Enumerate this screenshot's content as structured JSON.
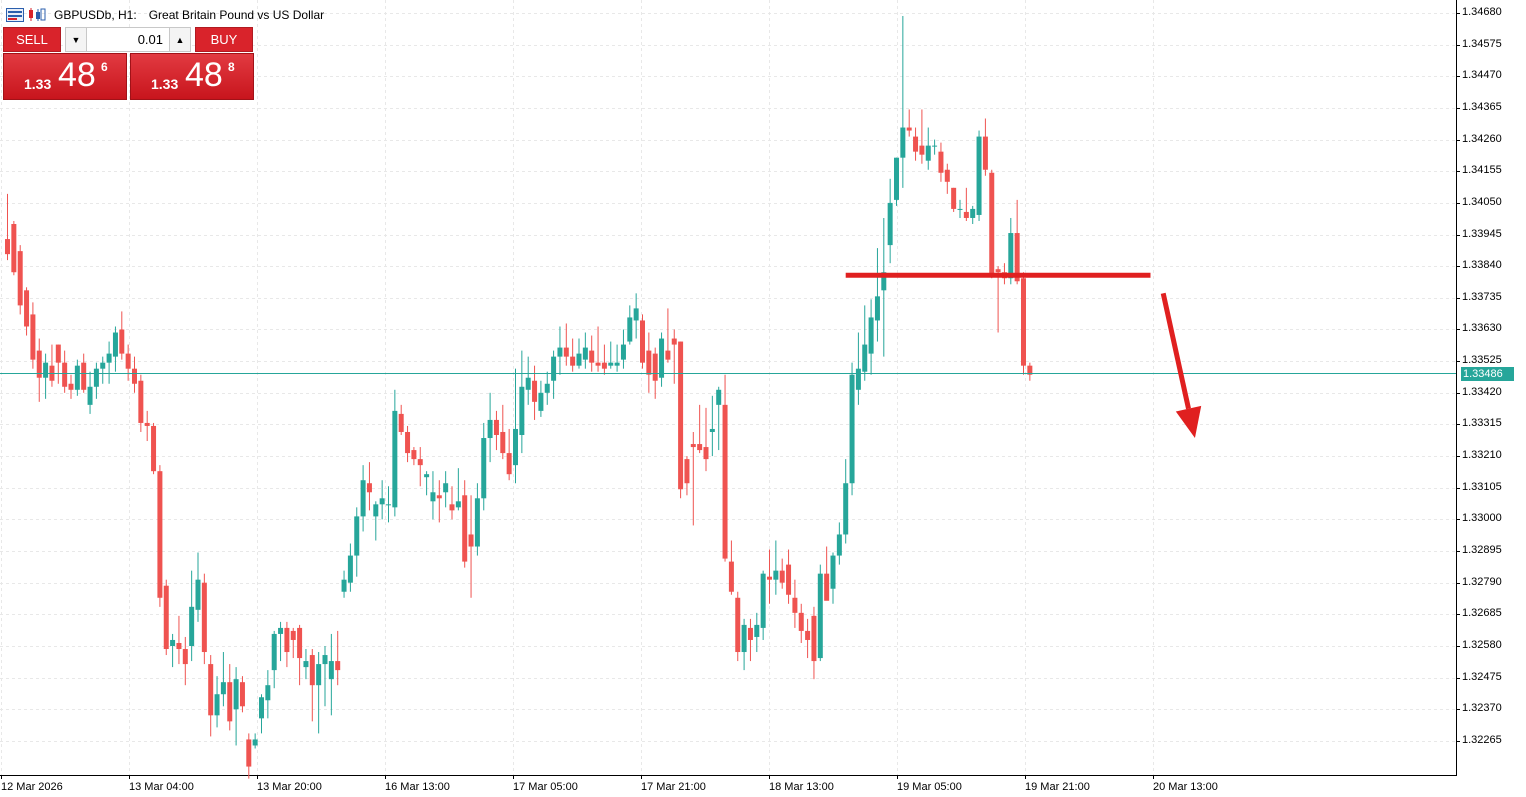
{
  "window": {
    "symbol_timeframe": "GBPUSDb, H1:",
    "description": "Great Britain Pound vs US Dollar"
  },
  "trade_panel": {
    "sell_label": "SELL",
    "buy_label": "BUY",
    "lot_value": "0.01",
    "sell_price": {
      "prefix": "1.33",
      "big": "48",
      "sup": "6"
    },
    "buy_price": {
      "prefix": "1.33",
      "big": "48",
      "sup": "8"
    },
    "button_color": "#d9232b"
  },
  "price_axis": {
    "ticks": [
      "1.34680",
      "1.34575",
      "1.34470",
      "1.34365",
      "1.34260",
      "1.34155",
      "1.34050",
      "1.33945",
      "1.33840",
      "1.33735",
      "1.33630",
      "1.33525",
      "1.33420",
      "1.33315",
      "1.33210",
      "1.33105",
      "1.33000",
      "1.32895",
      "1.32790",
      "1.32685",
      "1.32580",
      "1.32475",
      "1.32370",
      "1.32265"
    ],
    "current_bid_label": "1.33486"
  },
  "time_axis": {
    "labels": [
      "12 Mar 2026",
      "13 Mar 04:00",
      "13 Mar 20:00",
      "16 Mar 13:00",
      "17 Mar 05:00",
      "17 Mar 21:00",
      "18 Mar 13:00",
      "19 Mar 05:00",
      "19 Mar 21:00",
      "20 Mar 13:00"
    ]
  },
  "colors": {
    "bull": "#26a69a",
    "bear": "#ef5350",
    "grid": "#e8e8e8",
    "bid_line": "#26a69a",
    "annotation": "#e02020"
  },
  "chart_data": {
    "type": "candlestick",
    "symbol": "GBPUSDb",
    "timeframe": "H1",
    "ylim": [
      1.322,
      1.3471
    ],
    "candles": [
      [
        1.3393,
        1.3408,
        1.3386,
        1.3388
      ],
      [
        1.3398,
        1.3399,
        1.3381,
        1.3382
      ],
      [
        1.3389,
        1.3391,
        1.3368,
        1.3371
      ],
      [
        1.3376,
        1.3377,
        1.3361,
        1.3364
      ],
      [
        1.3368,
        1.3372,
        1.335,
        1.3353
      ],
      [
        1.3356,
        1.336,
        1.3339,
        1.3347
      ],
      [
        1.3347,
        1.3355,
        1.334,
        1.3352
      ],
      [
        1.3351,
        1.3358,
        1.3344,
        1.3346
      ],
      [
        1.3358,
        1.3358,
        1.3345,
        1.3352
      ],
      [
        1.3352,
        1.3356,
        1.3342,
        1.3344
      ],
      [
        1.3345,
        1.3348,
        1.334,
        1.3343
      ],
      [
        1.3343,
        1.3353,
        1.3341,
        1.3351
      ],
      [
        1.3352,
        1.3355,
        1.3342,
        1.3343
      ],
      [
        1.3338,
        1.3349,
        1.3335,
        1.3344
      ],
      [
        1.3344,
        1.3352,
        1.334,
        1.335
      ],
      [
        1.335,
        1.3354,
        1.3345,
        1.3352
      ],
      [
        1.3352,
        1.3359,
        1.3345,
        1.3355
      ],
      [
        1.3354,
        1.3364,
        1.3349,
        1.3362
      ],
      [
        1.3363,
        1.3369,
        1.3353,
        1.3355
      ],
      [
        1.3355,
        1.3358,
        1.3346,
        1.335
      ],
      [
        1.335,
        1.3354,
        1.3342,
        1.3345
      ],
      [
        1.3346,
        1.3348,
        1.3329,
        1.3332
      ],
      [
        1.3332,
        1.3336,
        1.3326,
        1.3331
      ],
      [
        1.3331,
        1.3332,
        1.3315,
        1.3316
      ],
      [
        1.3316,
        1.3318,
        1.3271,
        1.3274
      ],
      [
        1.3278,
        1.328,
        1.3255,
        1.3257
      ],
      [
        1.3258,
        1.3262,
        1.3251,
        1.326
      ],
      [
        1.3259,
        1.3268,
        1.3252,
        1.3257
      ],
      [
        1.3257,
        1.3261,
        1.3245,
        1.3252
      ],
      [
        1.3258,
        1.3283,
        1.3253,
        1.3271
      ],
      [
        1.327,
        1.3289,
        1.3266,
        1.328
      ],
      [
        1.3279,
        1.3282,
        1.3252,
        1.3256
      ],
      [
        1.3252,
        1.3255,
        1.3228,
        1.3235
      ],
      [
        1.3235,
        1.3248,
        1.3231,
        1.3242
      ],
      [
        1.3242,
        1.3256,
        1.3238,
        1.3246
      ],
      [
        1.3246,
        1.3252,
        1.323,
        1.3233
      ],
      [
        1.3237,
        1.3251,
        1.3225,
        1.3247
      ],
      [
        1.3246,
        1.3248,
        1.3236,
        1.3238
      ],
      [
        1.3227,
        1.3229,
        1.3214,
        1.3218
      ],
      [
        1.3225,
        1.3229,
        1.3224,
        1.3227
      ],
      [
        1.3234,
        1.3242,
        1.3229,
        1.3241
      ],
      [
        1.324,
        1.325,
        1.3234,
        1.3245
      ],
      [
        1.325,
        1.3263,
        1.3244,
        1.3262
      ],
      [
        1.3262,
        1.3266,
        1.3253,
        1.3264
      ],
      [
        1.3264,
        1.3266,
        1.3251,
        1.3256
      ],
      [
        1.3263,
        1.3264,
        1.3254,
        1.326
      ],
      [
        1.3264,
        1.3265,
        1.3245,
        1.3254
      ],
      [
        1.3251,
        1.3257,
        1.3247,
        1.3253
      ],
      [
        1.3255,
        1.3257,
        1.3233,
        1.3245
      ],
      [
        1.3245,
        1.3256,
        1.3229,
        1.3252
      ],
      [
        1.3252,
        1.3258,
        1.3238,
        1.3255
      ],
      [
        1.3247,
        1.3262,
        1.3235,
        1.3253
      ],
      [
        1.3253,
        1.3263,
        1.3245,
        1.325
      ],
      [
        1.3276,
        1.3283,
        1.3274,
        1.328
      ],
      [
        1.3279,
        1.3292,
        1.3276,
        1.3288
      ],
      [
        1.3288,
        1.3304,
        1.3281,
        1.3301
      ],
      [
        1.3301,
        1.3318,
        1.3296,
        1.3313
      ],
      [
        1.3312,
        1.3319,
        1.3303,
        1.3309
      ],
      [
        1.3301,
        1.3306,
        1.3293,
        1.3305
      ],
      [
        1.3305,
        1.3313,
        1.33,
        1.3307
      ],
      [
        1.3305,
        1.3311,
        1.3299,
        1.3305
      ],
      [
        1.3304,
        1.3343,
        1.3301,
        1.3336
      ],
      [
        1.3335,
        1.3338,
        1.3328,
        1.3329
      ],
      [
        1.3329,
        1.3331,
        1.3319,
        1.3322
      ],
      [
        1.3323,
        1.3324,
        1.3318,
        1.332
      ],
      [
        1.332,
        1.3324,
        1.3311,
        1.3318
      ],
      [
        1.3314,
        1.3316,
        1.3308,
        1.3315
      ],
      [
        1.3306,
        1.3316,
        1.33,
        1.3309
      ],
      [
        1.3308,
        1.3313,
        1.3299,
        1.3307
      ],
      [
        1.3309,
        1.3316,
        1.3304,
        1.3312
      ],
      [
        1.3305,
        1.3311,
        1.33,
        1.3303
      ],
      [
        1.3304,
        1.3317,
        1.3303,
        1.3306
      ],
      [
        1.3308,
        1.3313,
        1.3284,
        1.3286
      ],
      [
        1.3295,
        1.3308,
        1.3274,
        1.3291
      ],
      [
        1.3291,
        1.3312,
        1.3288,
        1.3307
      ],
      [
        1.3307,
        1.3332,
        1.3303,
        1.3327
      ],
      [
        1.3327,
        1.3342,
        1.3319,
        1.3333
      ],
      [
        1.3333,
        1.3336,
        1.3323,
        1.3328
      ],
      [
        1.3329,
        1.3338,
        1.332,
        1.3322
      ],
      [
        1.3322,
        1.333,
        1.3313,
        1.3315
      ],
      [
        1.3318,
        1.335,
        1.3312,
        1.333
      ],
      [
        1.3328,
        1.3356,
        1.3322,
        1.3344
      ],
      [
        1.3343,
        1.3354,
        1.3338,
        1.3347
      ],
      [
        1.3346,
        1.3351,
        1.3333,
        1.3339
      ],
      [
        1.3336,
        1.3346,
        1.3334,
        1.3342
      ],
      [
        1.3342,
        1.3349,
        1.3338,
        1.3345
      ],
      [
        1.3346,
        1.3356,
        1.334,
        1.3354
      ],
      [
        1.3354,
        1.3364,
        1.3348,
        1.3357
      ],
      [
        1.3357,
        1.3365,
        1.3351,
        1.3354
      ],
      [
        1.3354,
        1.336,
        1.3349,
        1.3351
      ],
      [
        1.3351,
        1.336,
        1.335,
        1.3355
      ],
      [
        1.3353,
        1.3362,
        1.335,
        1.3357
      ],
      [
        1.3356,
        1.3361,
        1.3349,
        1.3352
      ],
      [
        1.3352,
        1.3364,
        1.3349,
        1.3351
      ],
      [
        1.3352,
        1.3358,
        1.3348,
        1.335
      ],
      [
        1.3351,
        1.3359,
        1.335,
        1.3352
      ],
      [
        1.3351,
        1.3358,
        1.3349,
        1.3352
      ],
      [
        1.3353,
        1.3363,
        1.335,
        1.3358
      ],
      [
        1.3359,
        1.3371,
        1.3358,
        1.3367
      ],
      [
        1.3366,
        1.3375,
        1.336,
        1.337
      ],
      [
        1.3366,
        1.3368,
        1.335,
        1.3352
      ],
      [
        1.3356,
        1.3362,
        1.3342,
        1.3348
      ],
      [
        1.3355,
        1.3357,
        1.334,
        1.3346
      ],
      [
        1.3347,
        1.3362,
        1.3344,
        1.336
      ],
      [
        1.3356,
        1.337,
        1.3352,
        1.3353
      ],
      [
        1.336,
        1.3363,
        1.3345,
        1.3358
      ],
      [
        1.3359,
        1.3359,
        1.3307,
        1.331
      ],
      [
        1.332,
        1.3321,
        1.3308,
        1.3312
      ],
      [
        1.3325,
        1.3329,
        1.3298,
        1.3324
      ],
      [
        1.3325,
        1.3338,
        1.3322,
        1.3323
      ],
      [
        1.3324,
        1.3337,
        1.3316,
        1.332
      ],
      [
        1.3329,
        1.3341,
        1.3321,
        1.333
      ],
      [
        1.3338,
        1.3344,
        1.3323,
        1.3343
      ],
      [
        1.3338,
        1.3348,
        1.3286,
        1.3287
      ],
      [
        1.3286,
        1.3293,
        1.3275,
        1.3276
      ],
      [
        1.3274,
        1.3276,
        1.3253,
        1.3256
      ],
      [
        1.3256,
        1.3267,
        1.325,
        1.3265
      ],
      [
        1.3264,
        1.3267,
        1.3253,
        1.326
      ],
      [
        1.3261,
        1.3269,
        1.3256,
        1.3265
      ],
      [
        1.3264,
        1.3283,
        1.326,
        1.3282
      ],
      [
        1.3281,
        1.329,
        1.3272,
        1.328
      ],
      [
        1.328,
        1.3293,
        1.3275,
        1.3283
      ],
      [
        1.3283,
        1.3287,
        1.3277,
        1.3279
      ],
      [
        1.3285,
        1.329,
        1.3272,
        1.3275
      ],
      [
        1.3274,
        1.328,
        1.3264,
        1.3269
      ],
      [
        1.3269,
        1.3272,
        1.3259,
        1.3263
      ],
      [
        1.3263,
        1.3267,
        1.3254,
        1.326
      ],
      [
        1.3268,
        1.3271,
        1.3247,
        1.3253
      ],
      [
        1.3254,
        1.3285,
        1.3253,
        1.3282
      ],
      [
        1.3282,
        1.3291,
        1.3275,
        1.3273
      ],
      [
        1.3277,
        1.3289,
        1.3272,
        1.3288
      ],
      [
        1.3288,
        1.3299,
        1.3285,
        1.3295
      ],
      [
        1.3295,
        1.332,
        1.3292,
        1.3312
      ],
      [
        1.3312,
        1.3352,
        1.3308,
        1.3348
      ],
      [
        1.3343,
        1.3362,
        1.3338,
        1.335
      ],
      [
        1.3349,
        1.3371,
        1.3346,
        1.3358
      ],
      [
        1.3355,
        1.3373,
        1.3348,
        1.3367
      ],
      [
        1.3366,
        1.339,
        1.3359,
        1.3374
      ],
      [
        1.3376,
        1.34,
        1.3354,
        1.3382
      ],
      [
        1.3391,
        1.3413,
        1.3385,
        1.3405
      ],
      [
        1.3406,
        1.342,
        1.3404,
        1.342
      ],
      [
        1.342,
        1.3467,
        1.341,
        1.343
      ],
      [
        1.343,
        1.3436,
        1.3427,
        1.3429
      ],
      [
        1.3427,
        1.343,
        1.3419,
        1.3422
      ],
      [
        1.3424,
        1.3436,
        1.3418,
        1.3421
      ],
      [
        1.3419,
        1.343,
        1.3416,
        1.3424
      ],
      [
        1.3424,
        1.3426,
        1.3421,
        1.3424
      ],
      [
        1.3422,
        1.3425,
        1.3412,
        1.3415
      ],
      [
        1.3416,
        1.3418,
        1.3408,
        1.3412
      ],
      [
        1.341,
        1.341,
        1.3402,
        1.3403
      ],
      [
        1.3403,
        1.3406,
        1.34,
        1.3403
      ],
      [
        1.3402,
        1.341,
        1.3399,
        1.34
      ],
      [
        1.34,
        1.3404,
        1.3398,
        1.3403
      ],
      [
        1.3401,
        1.3429,
        1.3399,
        1.3427
      ],
      [
        1.3427,
        1.3433,
        1.3414,
        1.3416
      ],
      [
        1.3415,
        1.3416,
        1.338,
        1.3381
      ],
      [
        1.3383,
        1.3384,
        1.3362,
        1.3382
      ],
      [
        1.3382,
        1.3385,
        1.3378,
        1.338
      ],
      [
        1.338,
        1.34,
        1.3378,
        1.3395
      ],
      [
        1.3395,
        1.3406,
        1.3378,
        1.3379
      ],
      [
        1.338,
        1.3382,
        1.3348,
        1.3351
      ],
      [
        1.3351,
        1.3352,
        1.3346,
        1.3348
      ]
    ],
    "current_bid": 1.33486,
    "annotations": [
      {
        "kind": "horizontal_level",
        "price": 1.3381,
        "x_from_candle": 132,
        "x_to_candle": 180
      },
      {
        "kind": "arrow_down",
        "from_candle": 182,
        "from_price": 1.3375,
        "to_candle": 187,
        "to_price": 1.3327
      }
    ]
  }
}
